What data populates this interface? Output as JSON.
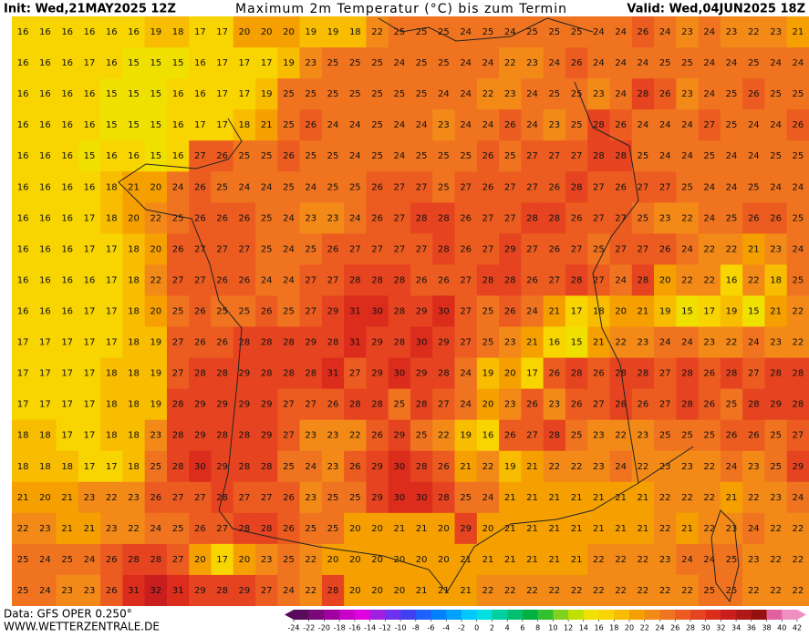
{
  "header": {
    "init": "Init: Wed,21MAY2025 12Z",
    "title": "Maximum 2m Temperatur (°C) bis zum Termin",
    "valid": "Valid: Wed,04JUN2025 18Z"
  },
  "footer": {
    "data": "Data: GFS OPER 0.250°",
    "site": "WWW.WETTERZENTRALE.DE"
  },
  "grid": {
    "rows": [
      [
        16,
        16,
        16,
        16,
        16,
        16,
        19,
        18,
        17,
        17,
        20,
        20,
        20,
        19,
        19,
        18,
        22,
        25,
        25,
        25,
        24,
        25,
        24,
        25,
        25,
        25,
        24,
        24,
        26,
        24,
        23,
        24,
        23,
        22,
        23,
        21
      ],
      [
        16,
        16,
        16,
        17,
        16,
        15,
        15,
        15,
        16,
        17,
        17,
        17,
        19,
        23,
        25,
        25,
        25,
        24,
        25,
        25,
        24,
        24,
        22,
        23,
        24,
        26,
        24,
        24,
        24,
        25,
        25,
        24,
        24,
        25,
        24,
        24
      ],
      [
        16,
        16,
        16,
        16,
        15,
        15,
        15,
        16,
        16,
        17,
        17,
        19,
        25,
        25,
        25,
        25,
        25,
        25,
        25,
        24,
        24,
        22,
        23,
        24,
        25,
        25,
        23,
        24,
        28,
        26,
        23,
        24,
        25,
        26,
        25,
        25
      ],
      [
        16,
        16,
        16,
        16,
        15,
        15,
        15,
        16,
        17,
        17,
        18,
        21,
        25,
        26,
        24,
        24,
        25,
        24,
        24,
        23,
        24,
        24,
        26,
        24,
        23,
        25,
        28,
        26,
        24,
        24,
        24,
        27,
        25,
        24,
        24,
        26
      ],
      [
        16,
        16,
        16,
        15,
        16,
        16,
        15,
        16,
        27,
        26,
        25,
        25,
        26,
        25,
        25,
        24,
        25,
        24,
        25,
        25,
        25,
        26,
        25,
        27,
        27,
        27,
        28,
        28,
        25,
        24,
        24,
        25,
        24,
        24,
        25,
        25
      ],
      [
        16,
        16,
        16,
        16,
        18,
        21,
        20,
        24,
        26,
        25,
        24,
        24,
        25,
        24,
        25,
        25,
        26,
        27,
        27,
        25,
        27,
        26,
        27,
        27,
        26,
        28,
        27,
        26,
        27,
        27,
        25,
        24,
        24,
        25,
        24,
        24
      ],
      [
        16,
        16,
        16,
        17,
        18,
        20,
        22,
        25,
        26,
        26,
        26,
        25,
        24,
        23,
        23,
        24,
        26,
        27,
        28,
        28,
        26,
        27,
        27,
        28,
        28,
        26,
        27,
        27,
        25,
        23,
        22,
        24,
        25,
        26,
        26,
        25
      ],
      [
        16,
        16,
        16,
        17,
        17,
        18,
        20,
        26,
        27,
        27,
        27,
        25,
        24,
        25,
        26,
        27,
        27,
        27,
        27,
        28,
        26,
        27,
        29,
        27,
        26,
        27,
        25,
        27,
        27,
        26,
        24,
        22,
        22,
        21,
        23,
        24
      ],
      [
        16,
        16,
        16,
        16,
        17,
        18,
        22,
        27,
        27,
        26,
        26,
        24,
        24,
        27,
        27,
        28,
        28,
        28,
        26,
        26,
        27,
        28,
        28,
        26,
        27,
        28,
        27,
        24,
        28,
        20,
        22,
        22,
        16,
        22,
        18,
        25
      ],
      [
        16,
        16,
        16,
        17,
        17,
        18,
        20,
        25,
        26,
        25,
        25,
        26,
        25,
        27,
        29,
        31,
        30,
        28,
        29,
        30,
        27,
        25,
        26,
        24,
        21,
        17,
        18,
        20,
        21,
        19,
        15,
        17,
        19,
        15,
        21,
        22
      ],
      [
        17,
        17,
        17,
        17,
        17,
        18,
        19,
        27,
        26,
        26,
        28,
        28,
        28,
        29,
        28,
        31,
        29,
        28,
        30,
        29,
        27,
        25,
        23,
        21,
        16,
        15,
        21,
        22,
        23,
        24,
        24,
        23,
        22,
        24,
        23,
        22
      ],
      [
        17,
        17,
        17,
        17,
        18,
        18,
        19,
        27,
        28,
        28,
        29,
        28,
        28,
        28,
        31,
        27,
        29,
        30,
        29,
        28,
        24,
        19,
        20,
        17,
        26,
        28,
        26,
        28,
        28,
        27,
        28,
        26,
        28,
        27,
        28,
        28
      ],
      [
        17,
        17,
        17,
        17,
        18,
        18,
        19,
        28,
        29,
        29,
        29,
        29,
        27,
        27,
        26,
        28,
        28,
        25,
        28,
        27,
        24,
        20,
        23,
        26,
        23,
        26,
        27,
        28,
        26,
        27,
        28,
        26,
        25,
        28,
        29,
        28
      ],
      [
        18,
        18,
        17,
        17,
        18,
        18,
        23,
        28,
        29,
        28,
        28,
        29,
        27,
        23,
        23,
        22,
        26,
        29,
        25,
        22,
        19,
        16,
        26,
        27,
        28,
        25,
        23,
        22,
        23,
        25,
        25,
        25,
        26,
        26,
        25,
        27
      ],
      [
        18,
        18,
        18,
        17,
        17,
        18,
        25,
        28,
        30,
        29,
        28,
        28,
        25,
        24,
        23,
        26,
        29,
        30,
        28,
        26,
        21,
        22,
        19,
        21,
        22,
        22,
        23,
        24,
        22,
        23,
        23,
        22,
        24,
        23,
        25,
        29
      ],
      [
        21,
        20,
        21,
        23,
        22,
        23,
        26,
        27,
        27,
        28,
        27,
        27,
        26,
        23,
        25,
        25,
        29,
        30,
        30,
        28,
        25,
        24,
        21,
        21,
        21,
        21,
        21,
        21,
        21,
        22,
        22,
        22,
        21,
        22,
        23,
        24
      ],
      [
        22,
        23,
        21,
        21,
        23,
        22,
        24,
        25,
        26,
        27,
        28,
        28,
        26,
        25,
        25,
        20,
        20,
        21,
        21,
        20,
        29,
        20,
        21,
        21,
        21,
        21,
        21,
        21,
        21,
        22,
        21,
        22,
        23,
        24,
        22,
        22
      ],
      [
        25,
        24,
        25,
        24,
        26,
        28,
        28,
        27,
        20,
        17,
        20,
        23,
        25,
        22,
        20,
        20,
        20,
        20,
        20,
        20,
        21,
        21,
        21,
        21,
        21,
        21,
        22,
        22,
        22,
        23,
        24,
        24,
        25,
        23,
        22,
        22
      ],
      [
        25,
        24,
        23,
        23,
        26,
        31,
        32,
        31,
        29,
        28,
        29,
        27,
        24,
        22,
        28,
        20,
        20,
        20,
        21,
        21,
        21,
        22,
        22,
        22,
        22,
        22,
        22,
        22,
        22,
        22,
        22,
        25,
        25,
        22,
        22,
        22
      ]
    ]
  },
  "colorbar": {
    "ticks": [
      -24,
      -22,
      -20,
      -18,
      -16,
      -14,
      -12,
      -10,
      -8,
      -6,
      -4,
      -2,
      0,
      2,
      4,
      6,
      8,
      10,
      12,
      14,
      16,
      18,
      20,
      22,
      24,
      26,
      28,
      30,
      32,
      34,
      36,
      38,
      40,
      42
    ],
    "colors": [
      "#5a0a5a",
      "#7a0a7a",
      "#a000a0",
      "#c800c8",
      "#e000e0",
      "#a020e0",
      "#7030f0",
      "#4040f0",
      "#2060ff",
      "#0080ff",
      "#00a0ff",
      "#00c8ff",
      "#00e0e0",
      "#00d0a0",
      "#00c070",
      "#00b040",
      "#30c030",
      "#80d020",
      "#c0e000",
      "#f0e000",
      "#f8d400",
      "#f8bc00",
      "#f5a000",
      "#f38a18",
      "#f07420",
      "#ec5c20",
      "#e64420",
      "#dc2c1c",
      "#c81e1e",
      "#b01818",
      "#961010",
      "#e060a0",
      "#f090c0"
    ]
  }
}
